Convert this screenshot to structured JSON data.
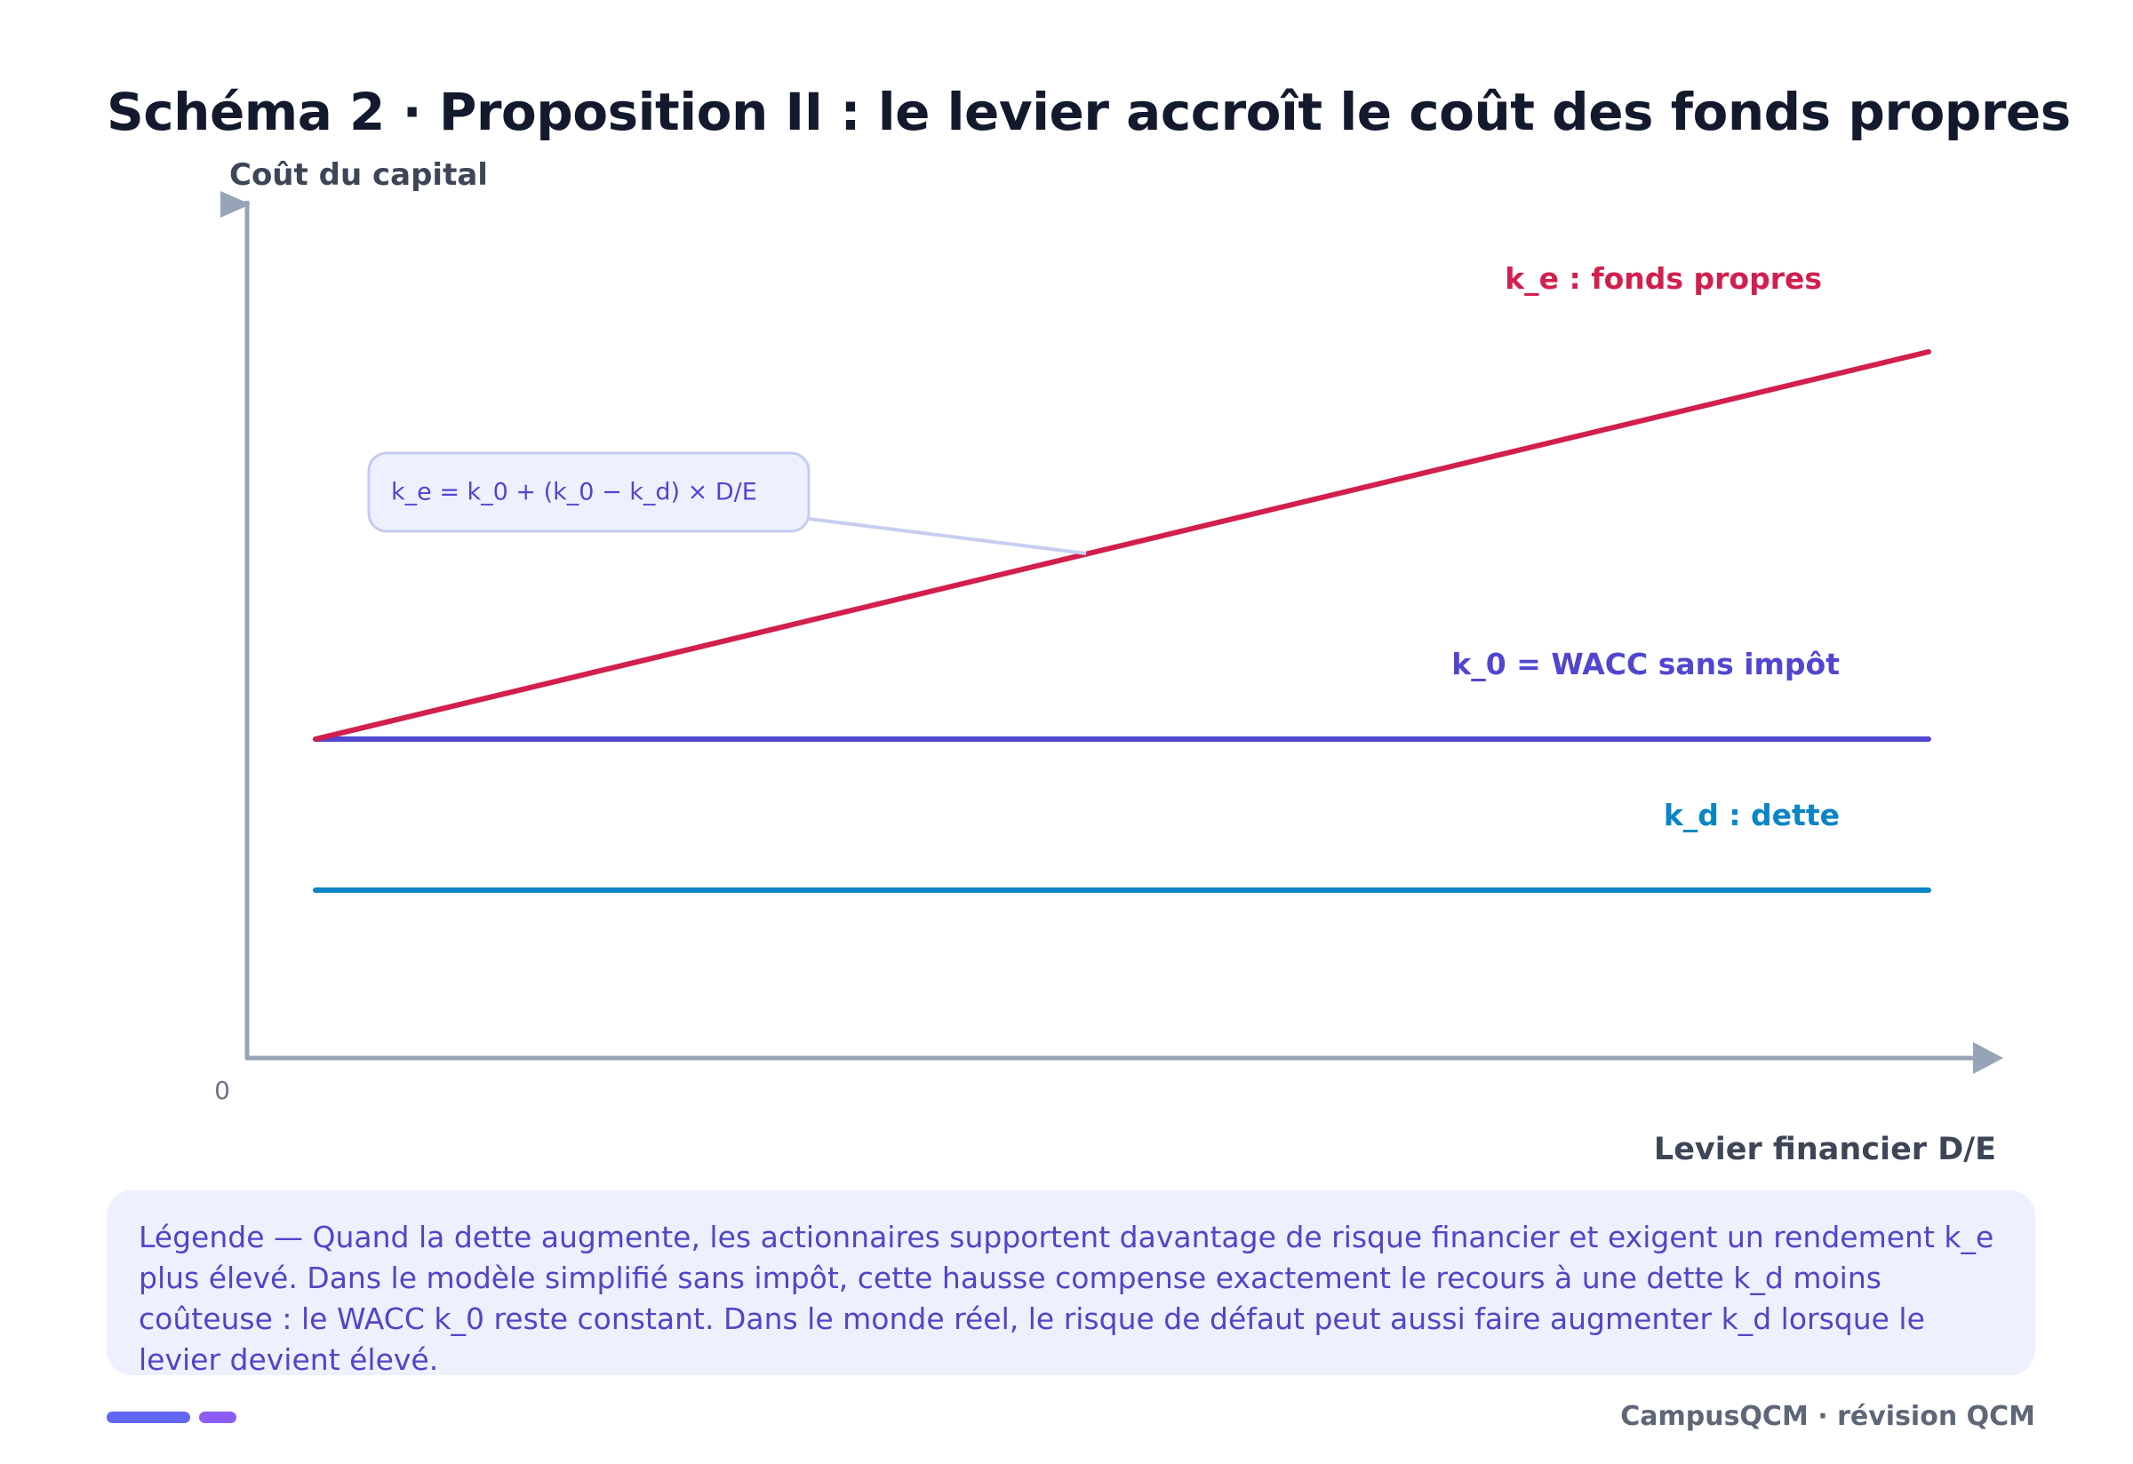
{
  "header": {
    "title": "Schéma 2 · Proposition II : le levier accroît le coût des fonds propres"
  },
  "diagram": {
    "y_axis_label": "Coût du capital",
    "x_axis_label": "Levier financier D/E",
    "origin_label": "0",
    "lines": [
      {
        "id": "k_e",
        "label": "k_e : fonds propres",
        "color": "#d21f4d",
        "shape": "rising",
        "start_level": "k_0"
      },
      {
        "id": "k_0",
        "label": "k_0 = WACC sans impôt",
        "color": "#5046d0",
        "shape": "constant"
      },
      {
        "id": "k_d",
        "label": "k_d : dette",
        "color": "#0a85c5",
        "shape": "constant"
      }
    ],
    "formula": "k_e = k_0 + (k_0 − k_d) × D/E",
    "axis_color": "#97a3b6"
  },
  "caption": {
    "text": "Légende — Quand la dette augmente, les actionnaires supportent davantage de risque financier et exigent un rendement k_e plus élevé. Dans le modèle simplifié sans impôt, cette hausse compense exactement le recours à une dette k_d moins coûteuse : le WACC k_0 reste constant. Dans le monde réel, le risque de défaut peut aussi faire augmenter k_d lorsque le levier devient élevé."
  },
  "footer": {
    "text": "CampusQCM · révision QCM"
  },
  "brand_colors": {
    "primary": "#6366f1",
    "secondary": "#8b5cf6"
  }
}
